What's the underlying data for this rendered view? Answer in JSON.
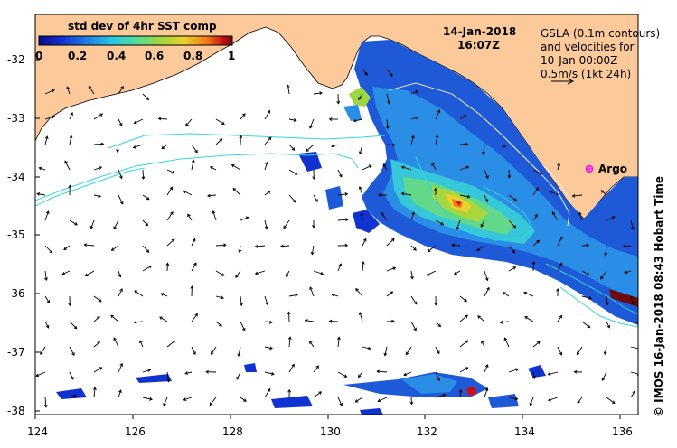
{
  "map": {
    "date": "14-Jan-2018",
    "time": "16:07Z",
    "legend": {
      "title": "std dev of 4hr SST comp",
      "ticks": [
        "0",
        "0.2",
        "0.4",
        "0.6",
        "0.8",
        "1"
      ]
    },
    "note": {
      "line1": "GSLA (0.1m contours)",
      "line2": "and velocities for",
      "line3": "10-Jan 00:00Z",
      "line4": "0.5m/s (1kt 24h)"
    },
    "argo_label": "Argo",
    "credit": "© IMOS 16-Jan-2018 08:43 Hobart Time",
    "lat_ticks": [
      "-32",
      "-33",
      "-34",
      "-35",
      "-36",
      "-37",
      "-38"
    ],
    "lon_ticks": [
      "124",
      "126",
      "128",
      "130",
      "132",
      "134",
      "136"
    ],
    "colors": {
      "land": "#fbc99a",
      "ocean": "#ffffff",
      "contour": "#33d6e6",
      "argo": "#ff00ff",
      "colormap": [
        "#0a0a8f",
        "#1032d0",
        "#1e7ee6",
        "#28c8e0",
        "#4ede9a",
        "#9cd640",
        "#e8d22c",
        "#f07a16",
        "#c8101a",
        "#6e0a0a"
      ]
    }
  }
}
